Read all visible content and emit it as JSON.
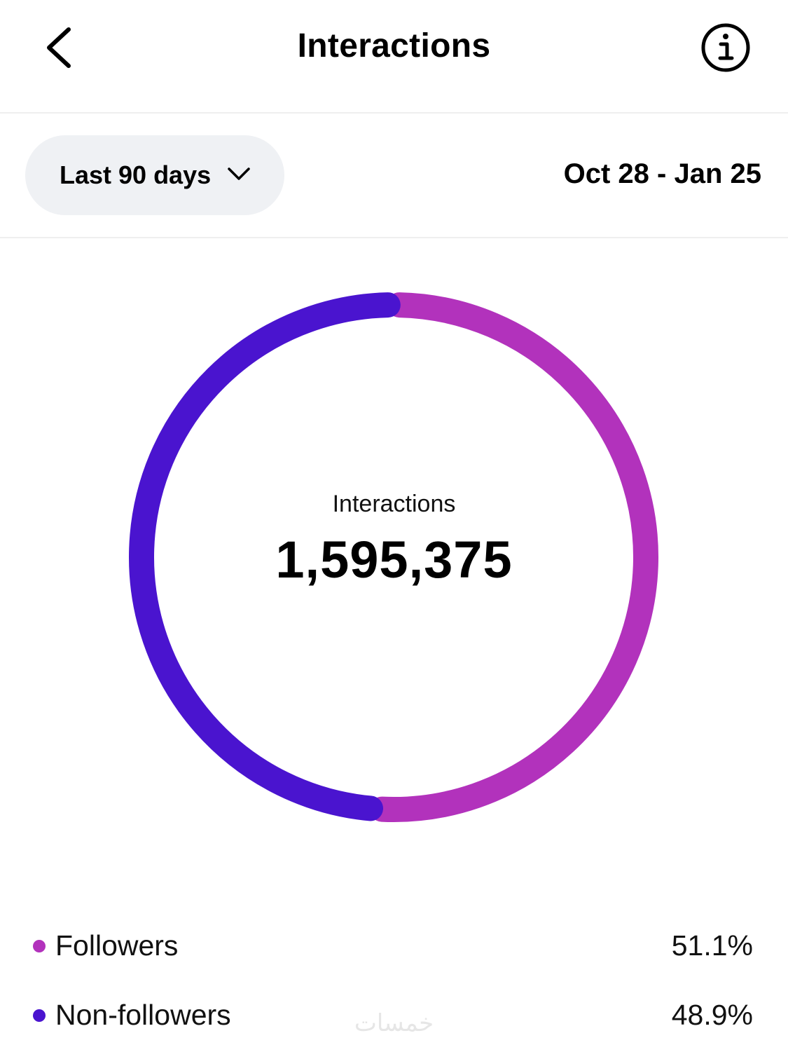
{
  "header": {
    "title": "Interactions"
  },
  "filter": {
    "range_label": "Last 90 days",
    "date_range": "Oct 28 - Jan 25"
  },
  "icons": {
    "back": "chevron-left-icon",
    "info": "info-icon",
    "dropdown": "chevron-down-icon"
  },
  "chart_data": {
    "type": "pie",
    "style": "donut",
    "center_label": "Interactions",
    "center_value": "1,595,375",
    "total": 1595375,
    "series": [
      {
        "name": "Followers",
        "value": 51.1,
        "display": "51.1%",
        "color": "#b232bc"
      },
      {
        "name": "Non-followers",
        "value": 48.9,
        "display": "48.9%",
        "color": "#4a14cf"
      }
    ]
  },
  "watermark": "خمسات"
}
